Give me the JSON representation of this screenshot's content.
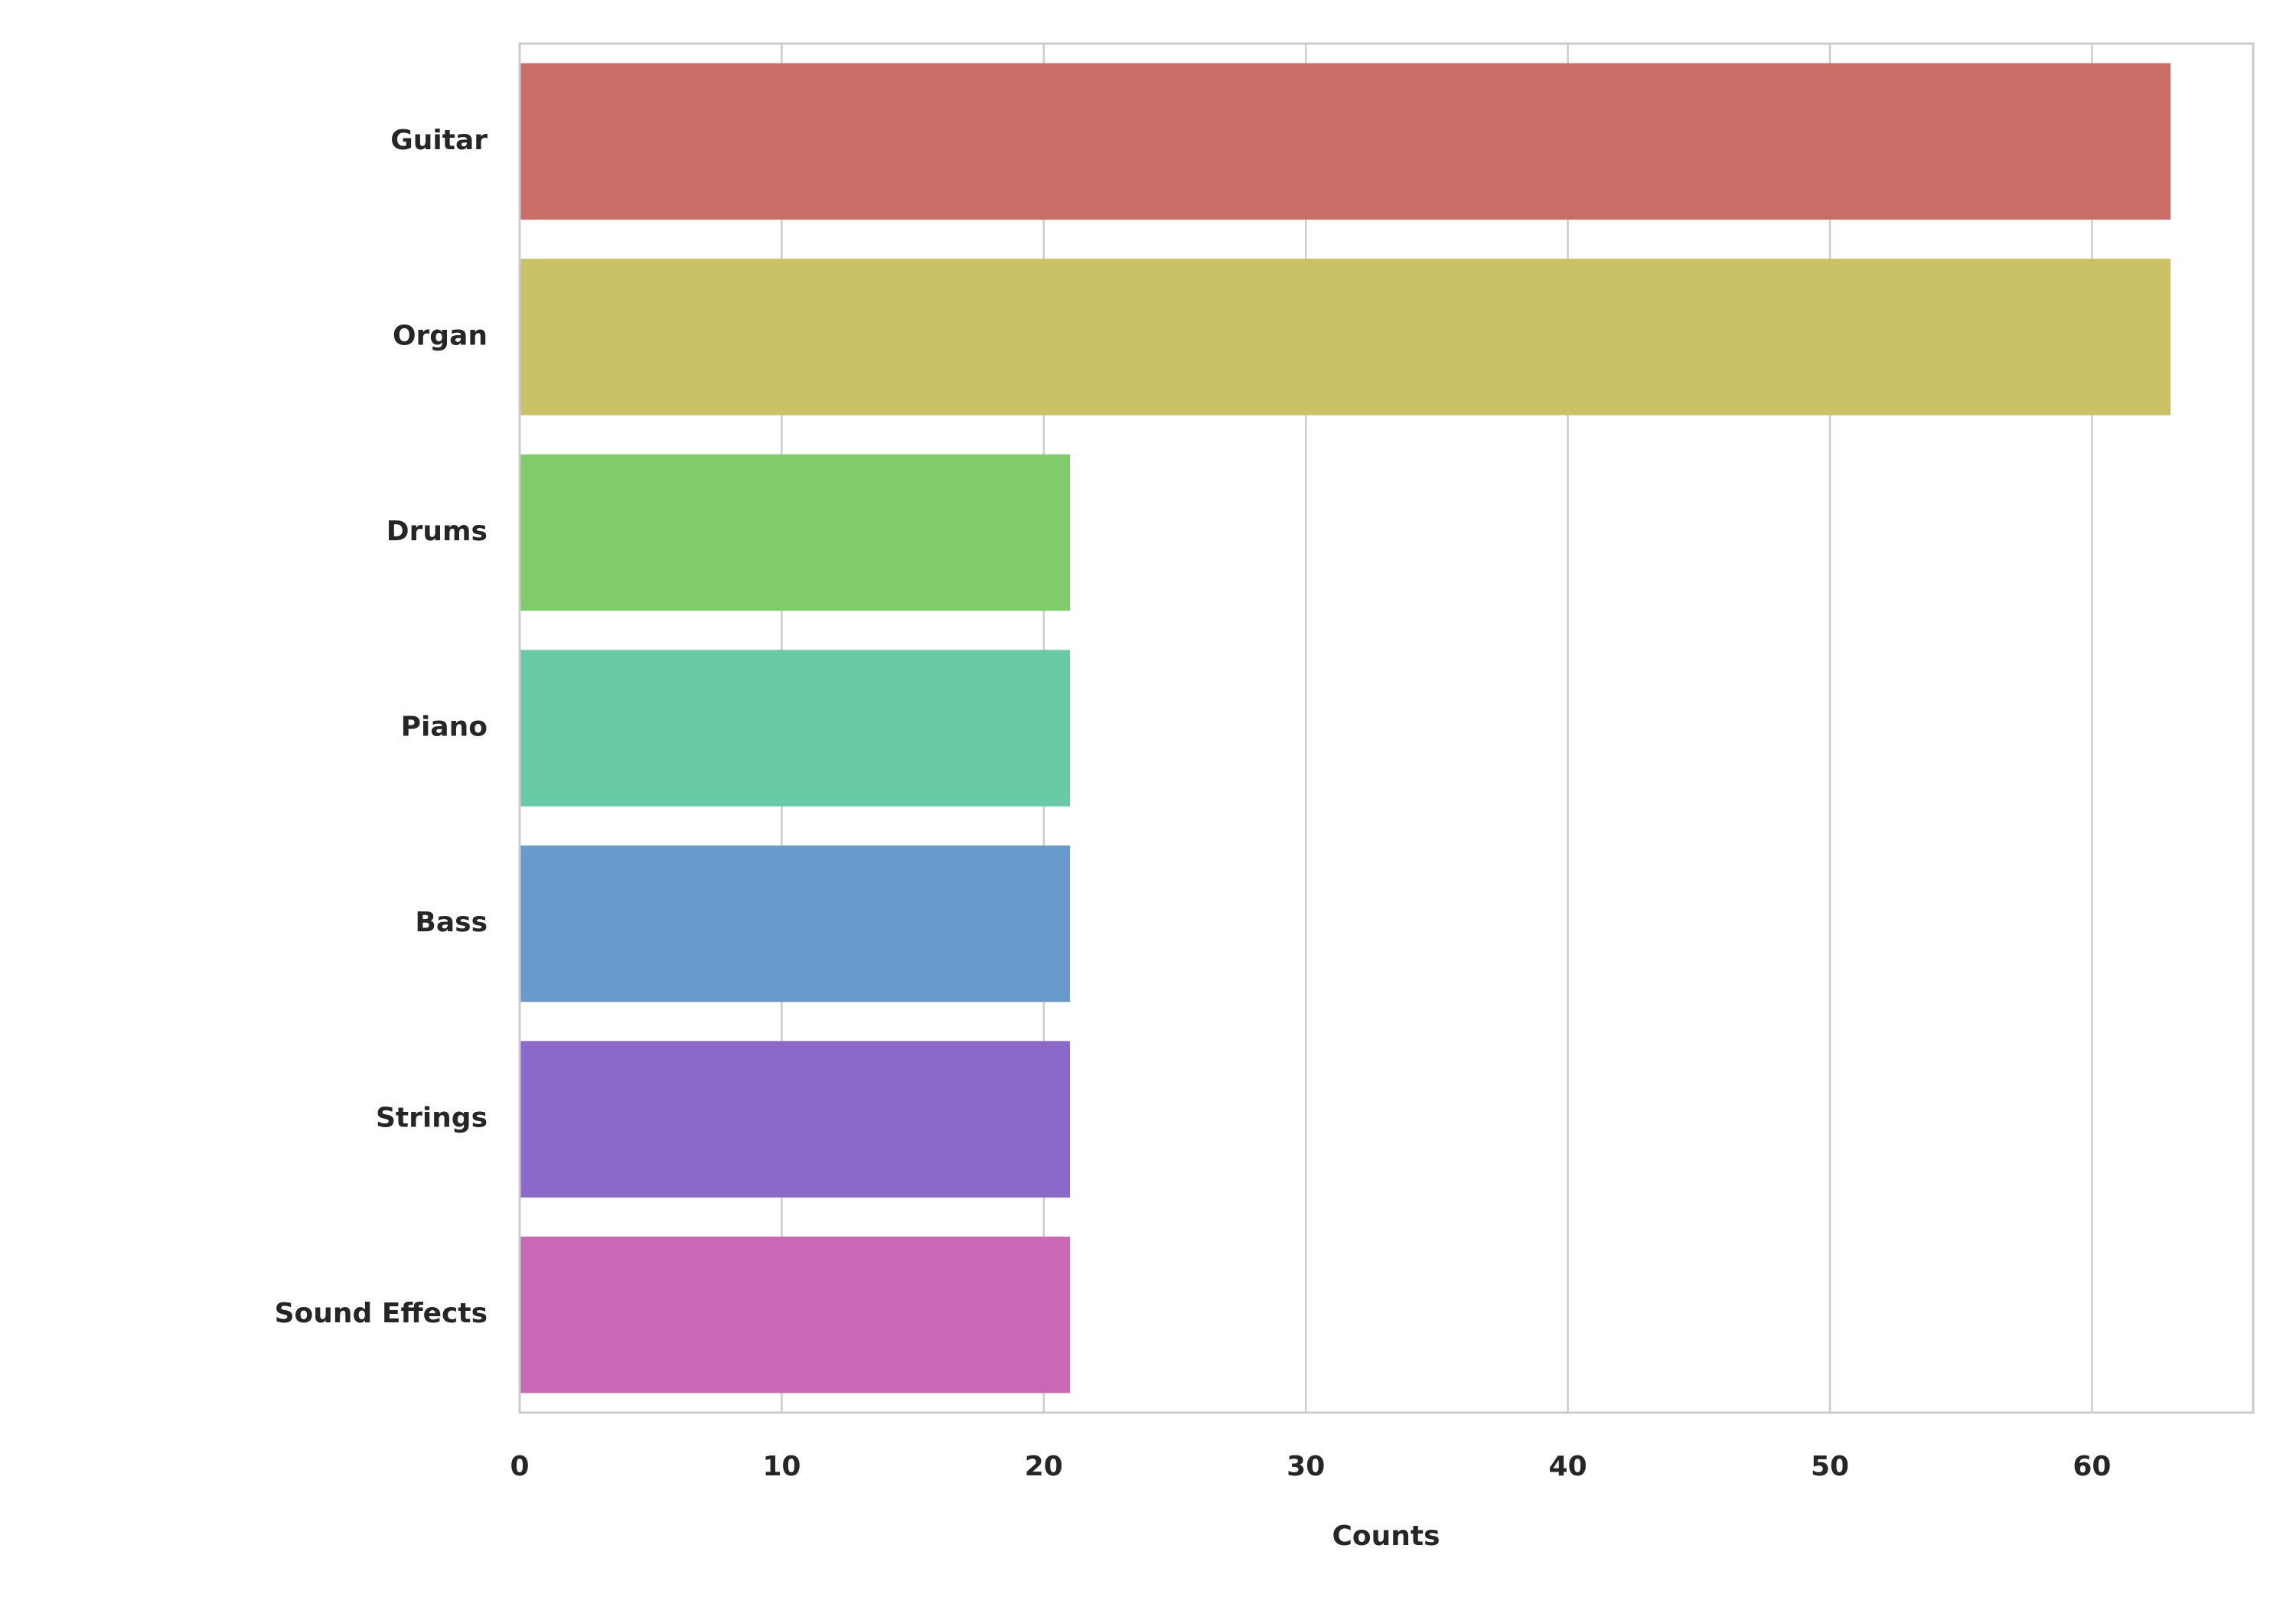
{
  "chart_data": {
    "type": "barh",
    "xlabel": "Counts",
    "categories": [
      "Guitar",
      "Organ",
      "Drums",
      "Piano",
      "Bass",
      "Strings",
      "Sound Effects"
    ],
    "values": [
      63,
      63,
      21,
      21,
      21,
      21,
      21
    ],
    "colors": [
      "#c96d66",
      "#cbc267",
      "#80cb6a",
      "#68cba5",
      "#689bcb",
      "#8b69cb",
      "#c968b6"
    ],
    "xlim": [
      0,
      66.15
    ],
    "xticks": [
      0,
      10,
      20,
      30,
      40,
      50,
      60
    ],
    "grid": true
  }
}
